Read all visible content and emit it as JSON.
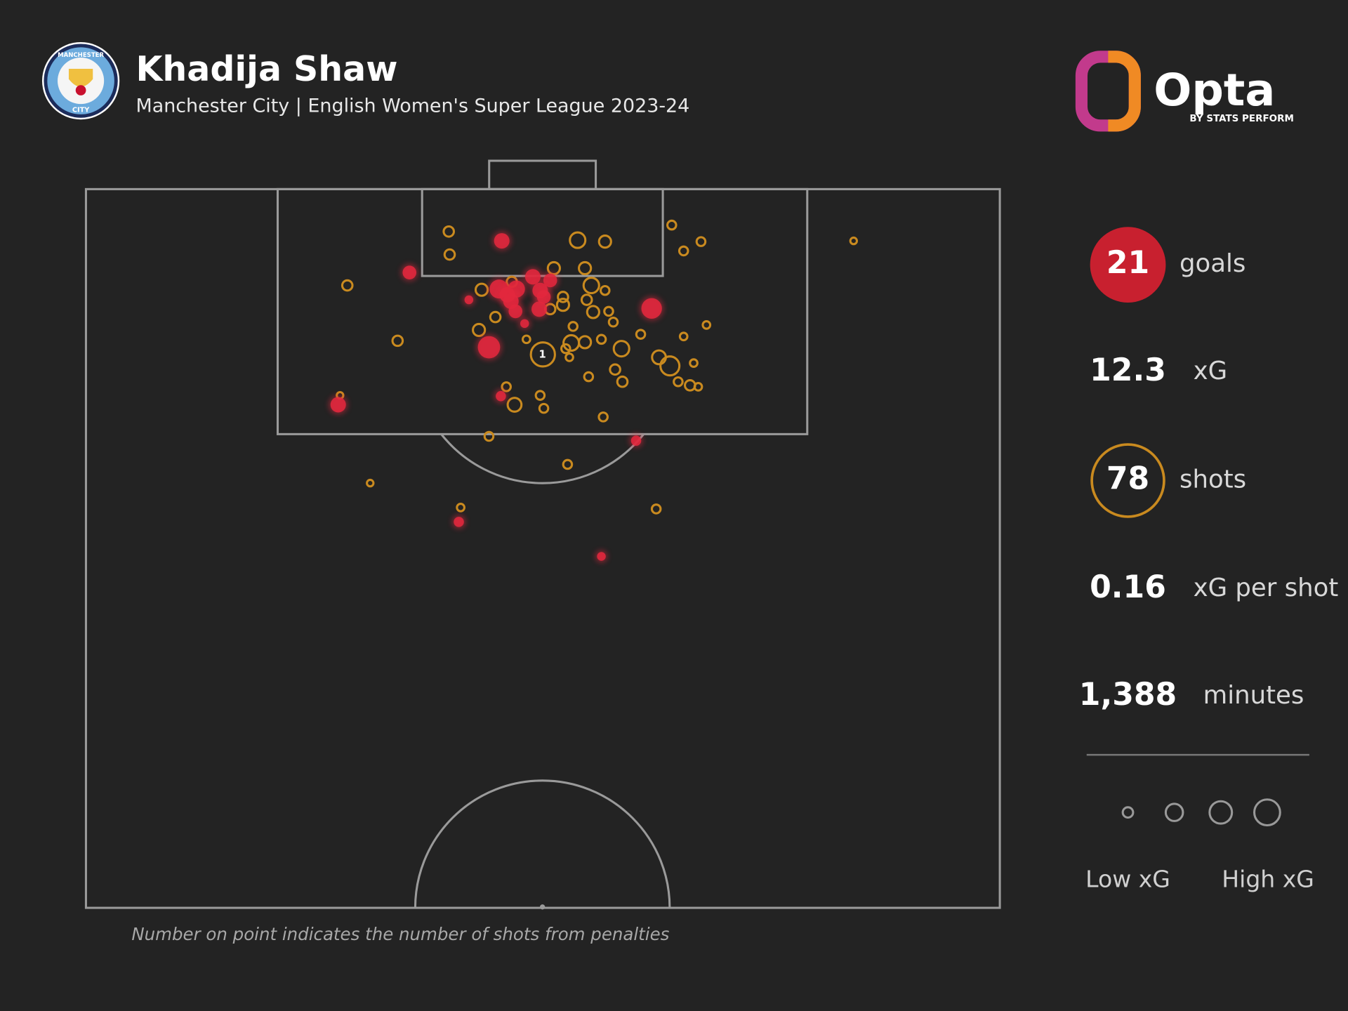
{
  "chart_data": {
    "type": "scatter",
    "title": "Khadija Shaw",
    "subtitle": "Manchester City | English Women's Super League 2023-24",
    "badge_text": [
      "MANCHESTER",
      "CITY"
    ],
    "brand": "Opta",
    "brand_sub": "BY STATS PERFORM",
    "footnote": "Number on point indicates the number of shots from penalties",
    "penalty_count": 1,
    "xlim": [
      0,
      100
    ],
    "ylim": [
      0,
      100
    ],
    "series": [
      {
        "color": "#e3283e",
        "filled": true,
        "x": [
          45.5,
          35.4,
          45.2,
          47.1,
          46.5,
          48.9,
          50.8,
          49.7,
          50.1,
          47.0,
          49.6,
          41.9,
          48.0,
          61.9,
          44.1,
          27.6,
          45.4,
          60.2,
          40.8,
          56.4,
          46.1
        ],
        "y": [
          7.2,
          11.6,
          13.9,
          13.9,
          15.6,
          12.2,
          12.7,
          14.1,
          15.0,
          17.0,
          16.7,
          15.4,
          18.7,
          16.6,
          22.0,
          30.0,
          28.8,
          35.0,
          46.3,
          51.1,
          14.7
        ],
        "xg": [
          0.25,
          0.18,
          0.43,
          0.33,
          0.25,
          0.25,
          0.18,
          0.25,
          0.18,
          0.18,
          0.25,
          0.04,
          0.04,
          0.53,
          0.65,
          0.25,
          0.07,
          0.07,
          0.07,
          0.04,
          0.25
        ]
      },
      {
        "color": "#c98a1f",
        "filled": false,
        "x": [
          39.7,
          39.8,
          53.8,
          56.8,
          64.1,
          67.3,
          65.4,
          84.0,
          28.6,
          51.2,
          54.6,
          55.3,
          56.8,
          43.3,
          52.2,
          52.2,
          54.8,
          55.5,
          57.2,
          57.7,
          44.8,
          43.0,
          60.7,
          65.4,
          67.9,
          34.1,
          53.1,
          54.6,
          52.5,
          52.9,
          50.0,
          58.6,
          62.7,
          63.9,
          66.5,
          57.9,
          58.7,
          55.0,
          64.8,
          66.1,
          67.0,
          27.8,
          46.0,
          49.7,
          46.9,
          50.1,
          56.6,
          44.1,
          52.7,
          31.1,
          41.0,
          62.4,
          50.8,
          53.3,
          48.2,
          56.4,
          46.6
        ],
        "y": [
          5.9,
          9.1,
          7.1,
          7.3,
          5.0,
          7.3,
          8.6,
          7.2,
          13.4,
          11.0,
          11.0,
          13.4,
          14.1,
          14.0,
          15.0,
          16.1,
          15.4,
          17.1,
          17.0,
          18.5,
          17.8,
          19.6,
          20.2,
          20.5,
          18.9,
          21.1,
          21.4,
          21.3,
          22.2,
          23.4,
          23.0,
          22.2,
          23.4,
          24.6,
          24.2,
          25.1,
          26.8,
          26.1,
          26.8,
          27.3,
          27.5,
          28.7,
          27.5,
          28.7,
          30.0,
          30.5,
          31.7,
          34.4,
          38.3,
          40.9,
          44.3,
          44.5,
          16.7,
          19.1,
          20.9,
          20.9,
          12.9
        ],
        "xg": [
          0.07,
          0.07,
          0.25,
          0.12,
          0.04,
          0.04,
          0.04,
          0.01,
          0.07,
          0.12,
          0.12,
          0.25,
          0.04,
          0.12,
          0.07,
          0.12,
          0.07,
          0.12,
          0.04,
          0.04,
          0.07,
          0.12,
          0.04,
          0.02,
          0.02,
          0.07,
          0.25,
          0.12,
          0.04,
          0.02,
          0.78,
          0.25,
          0.18,
          0.43,
          0.02,
          0.07,
          0.07,
          0.04,
          0.04,
          0.07,
          0.02,
          0.01,
          0.04,
          0.04,
          0.18,
          0.04,
          0.04,
          0.04,
          0.04,
          0.01,
          0.02,
          0.04,
          0.07,
          0.04,
          0.02,
          0.04,
          0.07
        ]
      }
    ],
    "stats": [
      {
        "value": 21,
        "name": "goals"
      },
      {
        "value": 12.3,
        "name": "xG"
      },
      {
        "value": 78,
        "name": "shots"
      },
      {
        "value": 0.16,
        "name": "xG per shot"
      },
      {
        "value": 1388,
        "value_label": "1,388",
        "name": "minutes"
      }
    ],
    "size_legend": [
      "Low xG",
      "High xG"
    ]
  }
}
